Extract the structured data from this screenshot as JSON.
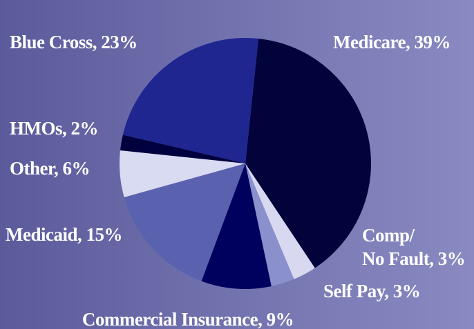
{
  "chart_data": {
    "type": "pie",
    "categories": [
      "Medicare, 39%",
      "Comp/\nNo Fault, 3%",
      "Self Pay, 3%",
      "Commercial Insurance, 9%",
      "Medicaid, 15%",
      "Other, 6%",
      "HMOs, 2%",
      "Blue Cross, 23%"
    ],
    "values": [
      39,
      3,
      3,
      9,
      15,
      6,
      2,
      23
    ],
    "colors": [
      "#03033c",
      "#d8d9f0",
      "#8a90cc",
      "#00005e",
      "#5a62b0",
      "#d9dbf2",
      "#00003e",
      "#1f2690"
    ]
  }
}
